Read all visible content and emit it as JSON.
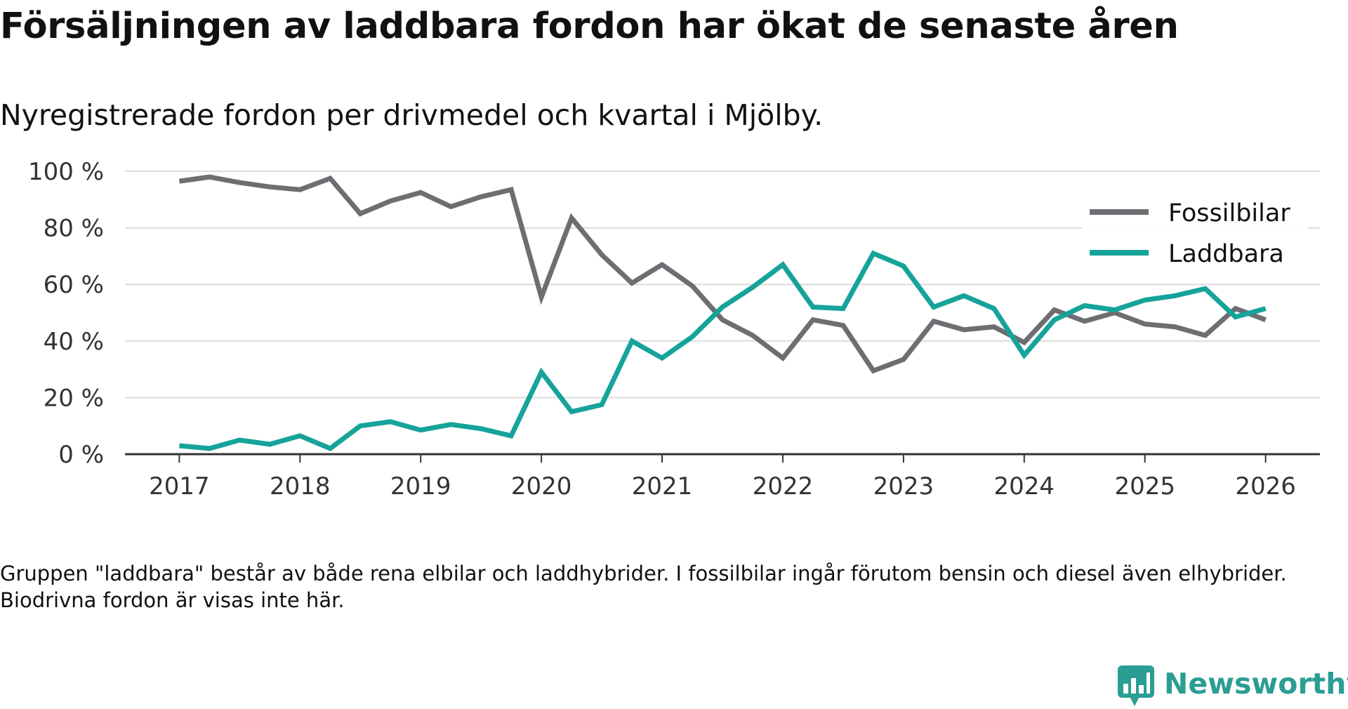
{
  "title": "Försäljningen av laddbara fordon har ökat de senaste åren",
  "subtitle": "Nyregistrerade fordon per drivmedel och kvartal i Mjölby.",
  "footnote": "Gruppen \"laddbara\" består av både rena elbilar och laddhybrider. I fossilbilar ingår förutom bensin och diesel även elhybrider. Biodrivna fordon är visas inte här.",
  "brand": {
    "name": "Newsworthy",
    "color": "#2a9d94"
  },
  "chart_data": {
    "type": "line",
    "title": "Försäljningen av laddbara fordon har ökat de senaste åren",
    "xlabel": "",
    "ylabel": "",
    "xlim": [
      2017,
      2026
    ],
    "ylim": [
      0,
      100
    ],
    "x_ticks": [
      2017,
      2018,
      2019,
      2020,
      2021,
      2022,
      2023,
      2024,
      2025,
      2026
    ],
    "y_ticks": [
      0,
      20,
      40,
      60,
      80,
      100
    ],
    "y_tick_suffix": " %",
    "grid": true,
    "legend_position": "top-right",
    "x": [
      2017,
      2017.25,
      2017.5,
      2017.75,
      2018,
      2018.25,
      2018.5,
      2018.75,
      2019,
      2019.25,
      2019.5,
      2019.75,
      2020,
      2020.25,
      2020.5,
      2020.75,
      2021,
      2021.25,
      2021.5,
      2021.75,
      2022,
      2022.25,
      2022.5,
      2022.75,
      2023,
      2023.25,
      2023.5,
      2023.75,
      2024,
      2024.25,
      2024.5,
      2024.75,
      2025,
      2025.25,
      2025.5,
      2025.75,
      2026
    ],
    "series": [
      {
        "name": "Fossilbilar",
        "color": "#6e6d72",
        "values": [
          96.5,
          98,
          96,
          94.5,
          93.5,
          97.5,
          85,
          89.5,
          92.5,
          87.5,
          91,
          93.5,
          55.5,
          83.5,
          70.5,
          60.5,
          67,
          59.5,
          47.5,
          42,
          34,
          47.5,
          45.5,
          29.5,
          33.5,
          47,
          44,
          45,
          39.5,
          51,
          47,
          50,
          46,
          45,
          42,
          51.5,
          47.5
        ]
      },
      {
        "name": "Laddbara",
        "color": "#15a39a",
        "values": [
          3,
          2,
          5,
          3.5,
          6.5,
          2,
          10,
          11.5,
          8.5,
          10.5,
          9,
          6.5,
          29,
          15,
          17.5,
          40,
          34,
          41.5,
          52,
          59,
          67,
          52,
          51.5,
          71,
          66.5,
          52,
          56,
          51.5,
          35,
          47.5,
          52.5,
          51,
          54.5,
          56,
          58.5,
          48.5,
          51.5
        ]
      }
    ]
  }
}
